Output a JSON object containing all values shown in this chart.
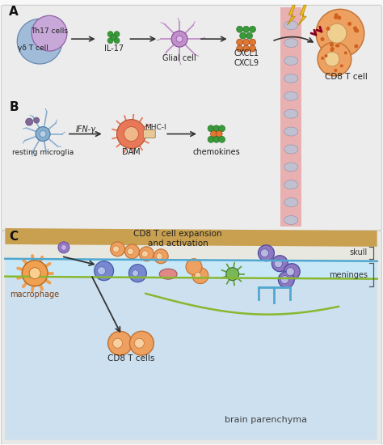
{
  "fig_width": 4.74,
  "fig_height": 5.5,
  "dpi": 100,
  "bg_color": "#f8f8f8",
  "panel_ab_bg": "#ececec",
  "panel_c_bg": "#e8e8e6",
  "label_A": "A",
  "label_B": "B",
  "label_C": "C",
  "text_IL17": "IL-17",
  "text_glial": "Glial cell",
  "text_CXCL": "CXCL1\nCXCL9",
  "text_CD8_right": "CD8 T cell",
  "text_IFN": "IFN-γ",
  "text_MHCI": "MHC-I",
  "text_DAM": "DAM",
  "text_chemo": "chemokines",
  "text_resting": "resting microglia",
  "text_Th17": "Th17 cells",
  "text_gamma_delta": "γδ T cell",
  "text_macrophage": "macrophage",
  "text_CD8_expansion": "CD8 T cell expansion\nand activation",
  "text_CD8_cells": "CD8 T cells",
  "text_skull": "skull",
  "text_meninges": "meninges",
  "text_brain": "brain parenchyma",
  "color_th17_purple": "#c8a8d8",
  "color_gamma_blue": "#a0bcd8",
  "color_green_dots": "#3a9a3a",
  "color_orange_dots": "#e07830",
  "color_glial_purple": "#c090c8",
  "color_microglia_blue": "#88aed0",
  "color_DAM_orange": "#e87858",
  "color_CD8_orange": "#eda060",
  "color_skull_tan": "#c8a050",
  "color_meninges_blue": "#50a8d0",
  "color_vessel_pink": "#e8a8a8",
  "color_brain_bg": "#cce0f0",
  "color_macrophage_orange": "#f0a050",
  "color_purple_cell": "#9078c0",
  "color_blue_cell": "#7888d0",
  "color_red_cell": "#e08888",
  "color_arrow": "#333333",
  "color_green_line": "#88b830"
}
